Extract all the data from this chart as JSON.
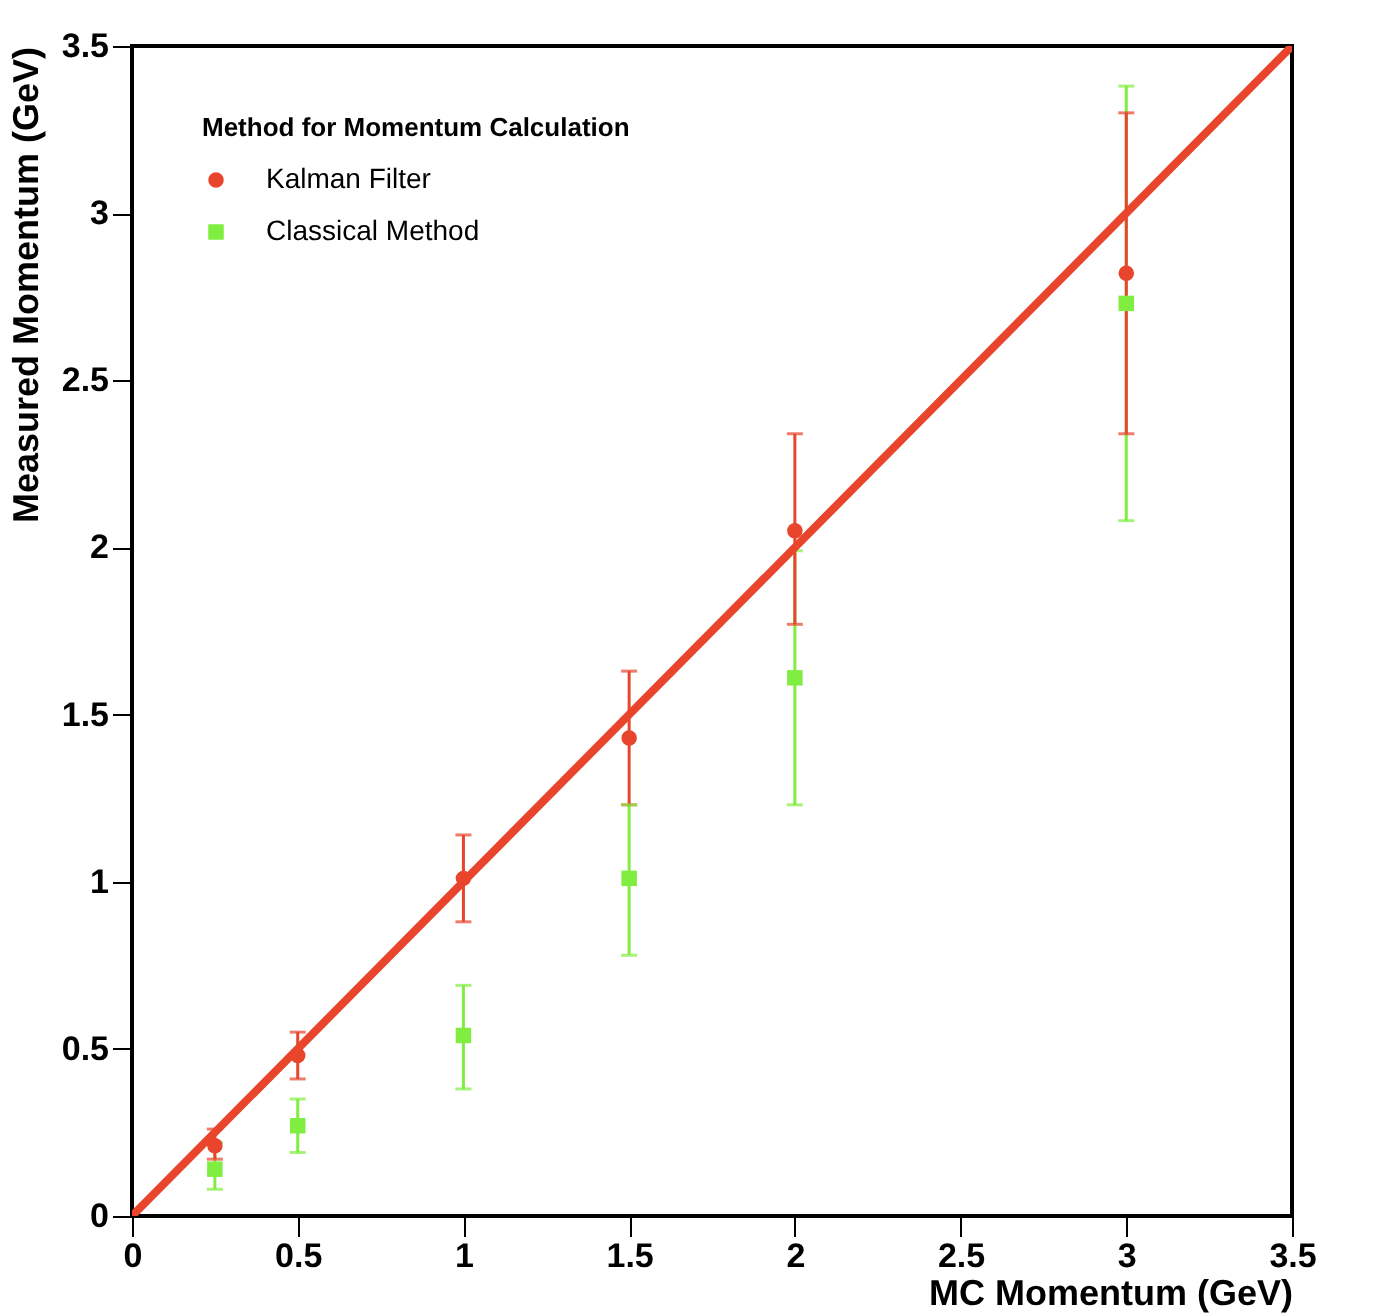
{
  "chart_data": {
    "type": "scatter",
    "xlabel": "MC Momentum (GeV)",
    "ylabel": "Measured Momentum (GeV)",
    "legend_title": "Method for Momentum Calculation",
    "legend": "top left",
    "grid": false,
    "xlim": [
      0,
      3.5
    ],
    "xticks": [
      0,
      0.5,
      1,
      1.5,
      2,
      2.5,
      3,
      3.5
    ],
    "ylim": [
      0,
      3.5
    ],
    "yticks": [
      0,
      0.5,
      1,
      1.5,
      2,
      2.5,
      3,
      3.5
    ],
    "series": [
      {
        "name": "Kalman Filter",
        "color": "#e8452c",
        "marker": "circle",
        "x": [
          0.25,
          0.5,
          1,
          1.5,
          2,
          3
        ],
        "values": [
          0.21,
          0.48,
          1.01,
          1.43,
          2.05,
          2.82
        ],
        "errors": [
          [
            0.17,
            0.26
          ],
          [
            0.41,
            0.55
          ],
          [
            0.88,
            1.14
          ],
          [
            1.23,
            1.63
          ],
          [
            1.77,
            2.34
          ],
          [
            2.34,
            3.3
          ]
        ]
      },
      {
        "name": "Classical Method",
        "color": "#80ee40",
        "marker": "square",
        "x": [
          0.25,
          0.5,
          1,
          1.5,
          2,
          3
        ],
        "values": [
          0.14,
          0.27,
          0.54,
          1.01,
          1.61,
          2.73
        ],
        "errors": [
          [
            0.08,
            0.22
          ],
          [
            0.19,
            0.35
          ],
          [
            0.38,
            0.69
          ],
          [
            0.78,
            1.23
          ],
          [
            1.23,
            1.99
          ],
          [
            2.08,
            3.38
          ]
        ]
      },
      {
        "type": "line",
        "color": "#e8452c",
        "x": [
          0,
          3.5
        ],
        "values": [
          0,
          3.5
        ]
      }
    ]
  }
}
